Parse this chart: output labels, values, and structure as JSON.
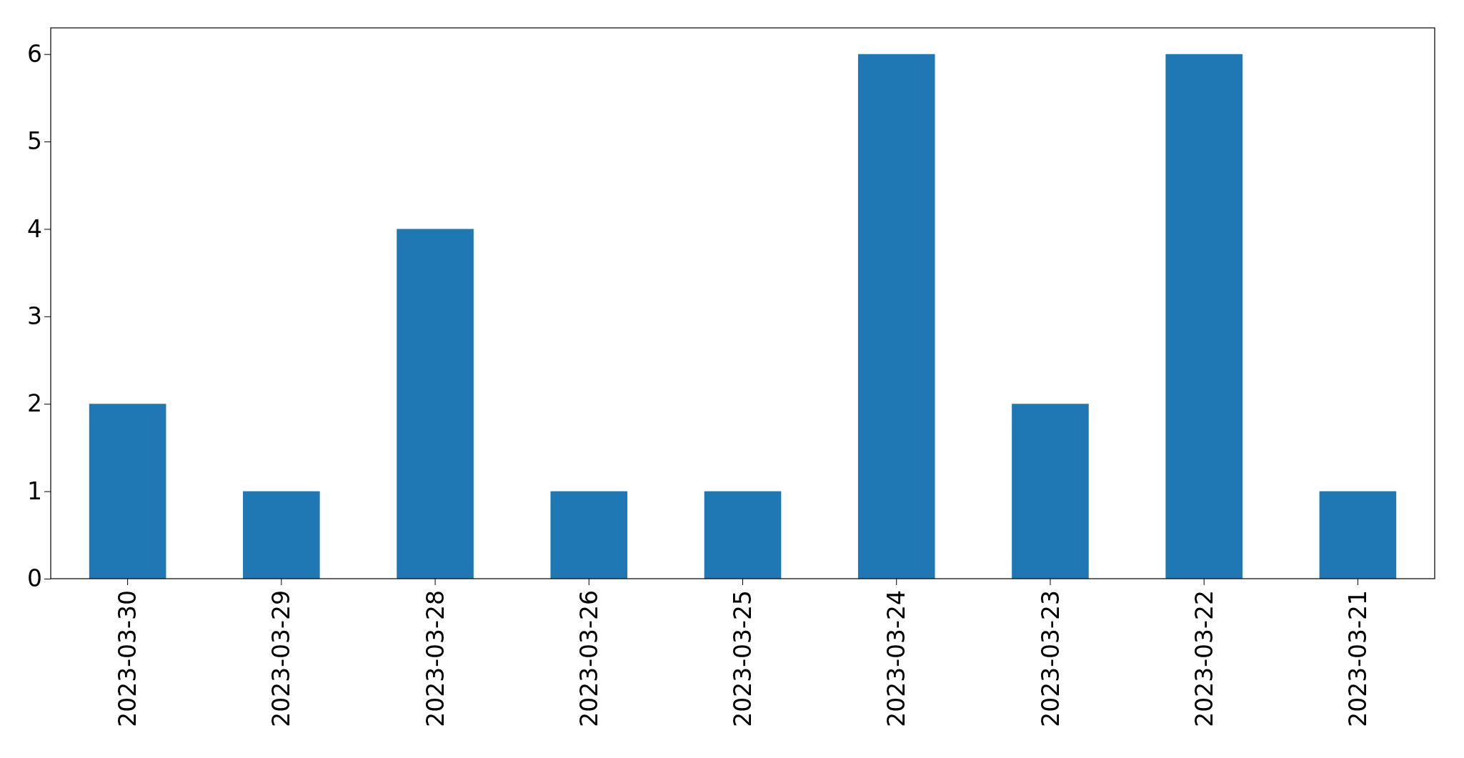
{
  "chart_data": {
    "type": "bar",
    "categories": [
      "2023-03-30",
      "2023-03-29",
      "2023-03-28",
      "2023-03-26",
      "2023-03-25",
      "2023-03-24",
      "2023-03-23",
      "2023-03-22",
      "2023-03-21"
    ],
    "values": [
      2,
      1,
      4,
      1,
      1,
      6,
      2,
      6,
      1
    ],
    "color": "#1f77b4",
    "ylim": [
      0,
      6.3
    ],
    "yticks": [
      0,
      1,
      2,
      3,
      4,
      5,
      6
    ],
    "grid": false
  }
}
